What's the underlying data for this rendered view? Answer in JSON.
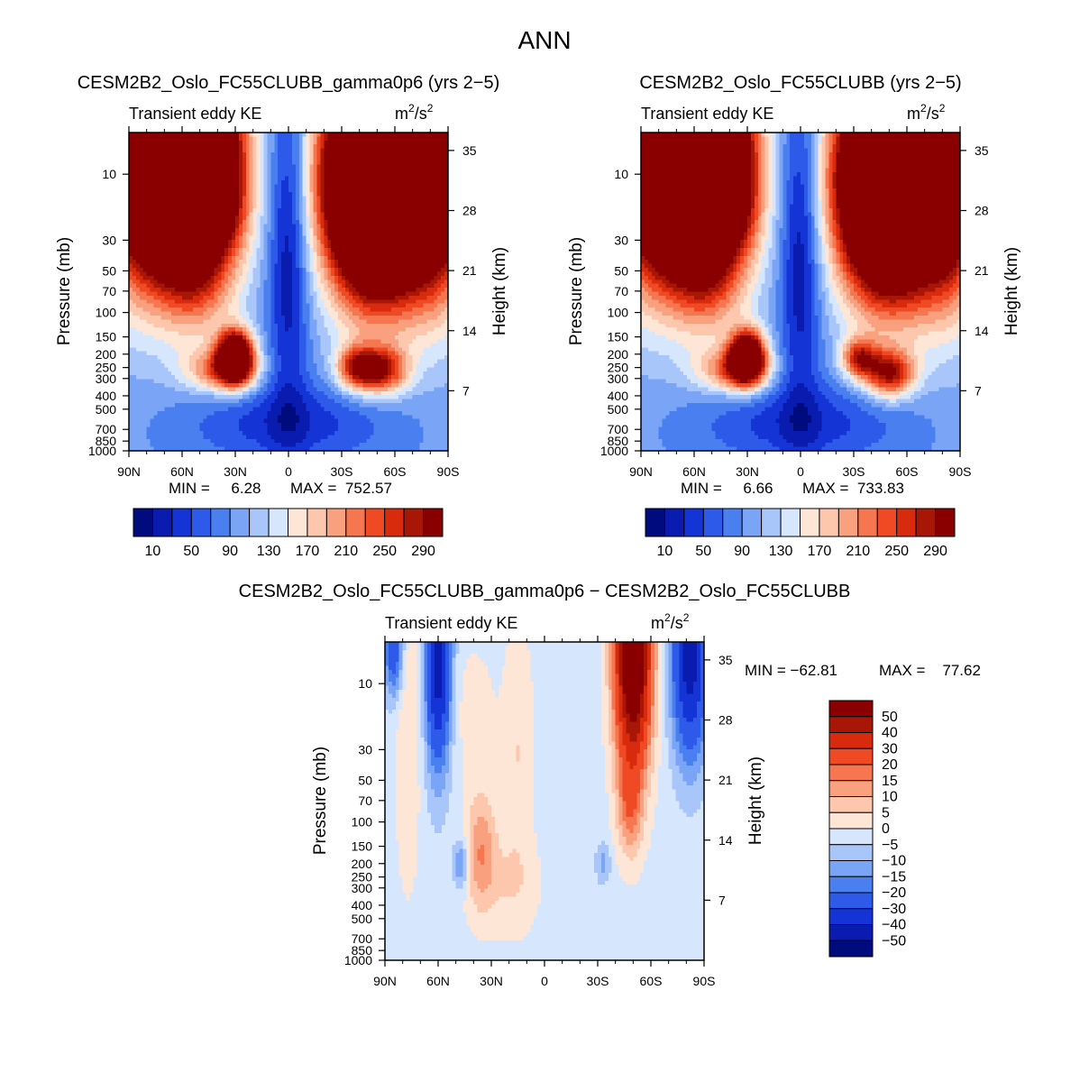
{
  "figure_title": "ANN",
  "colors": {
    "abs_palette": [
      "#000c7e",
      "#0a1cb0",
      "#1434d6",
      "#2d5ae8",
      "#4a7ff0",
      "#7aa4f6",
      "#a9c6fa",
      "#d6e6fd",
      "#fde6d6",
      "#fcc7ac",
      "#f9a07e",
      "#f6764f",
      "#ef4a23",
      "#d82b0e",
      "#a81706",
      "#8a0000"
    ],
    "diff_palette": [
      "#000c7e",
      "#0a1cb0",
      "#1434d6",
      "#2d5ae8",
      "#4a7ff0",
      "#7aa4f6",
      "#a9c6fa",
      "#d6e6fd",
      "#fde6d6",
      "#fcc7ac",
      "#f9a07e",
      "#f6764f",
      "#ef4a23",
      "#d82b0e",
      "#a81706",
      "#8a0000"
    ],
    "missing": "#ffffff"
  },
  "chart_data": [
    {
      "id": "panel1",
      "type": "heatmap",
      "title": "CESM2B2_Oslo_FC55CLUBB_gamma0p6 (yrs 2−5)",
      "subtitle": "Transient eddy KE",
      "units_left": "m",
      "units_right": "/s",
      "units_sup": "2",
      "ylabel": "Pressure (mb)",
      "ylabel2": "Height (km)",
      "x_ticks": [
        "90N",
        "60N",
        "30N",
        "0",
        "30S",
        "60S",
        "90S"
      ],
      "x_values": [
        90,
        60,
        30,
        0,
        -30,
        -60,
        -90
      ],
      "y_ticks": [
        "10",
        "30",
        "50",
        "70",
        "100",
        "150",
        "200",
        "250",
        "300",
        "400",
        "500",
        "700",
        "850",
        "1000"
      ],
      "y_values": [
        10,
        30,
        50,
        70,
        100,
        150,
        200,
        250,
        300,
        400,
        500,
        700,
        850,
        1000
      ],
      "height_ticks": [
        "35",
        "28",
        "21",
        "14",
        "7"
      ],
      "height_values": [
        35,
        28,
        21,
        14,
        7
      ],
      "ylim": [
        5,
        1000
      ],
      "min_text": "MIN =     6.28",
      "max_text": "MAX =  752.57",
      "levels": [
        10,
        30,
        50,
        70,
        90,
        110,
        130,
        150,
        170,
        190,
        210,
        230,
        250,
        270,
        290
      ],
      "colorbar_labels": [
        "10",
        "50",
        "90",
        "130",
        "170",
        "210",
        "250",
        "290"
      ],
      "fields": {
        "base": 95,
        "blobs": [
          {
            "lat": 55,
            "logp": 1.0,
            "slat": 18,
            "slogp": 0.55,
            "amp": 650
          },
          {
            "lat": -50,
            "logp": 1.05,
            "slat": 20,
            "slogp": 0.55,
            "amp": 650
          },
          {
            "lat": 88,
            "logp": 0.7,
            "slat": 14,
            "slogp": 0.7,
            "amp": 300
          },
          {
            "lat": -85,
            "logp": 0.8,
            "slat": 14,
            "slogp": 0.7,
            "amp": 300
          },
          {
            "lat": 30,
            "logp": 2.32,
            "slat": 7,
            "slogp": 0.13,
            "amp": 330
          },
          {
            "lat": 38,
            "logp": 2.42,
            "slat": 14,
            "slogp": 0.11,
            "amp": 120
          },
          {
            "lat": -38,
            "logp": 2.4,
            "slat": 8,
            "slogp": 0.11,
            "amp": 150
          },
          {
            "lat": -53,
            "logp": 2.42,
            "slat": 10,
            "slogp": 0.12,
            "amp": 170
          },
          {
            "lat": 0,
            "logp": 1.5,
            "slat": 8,
            "slogp": 0.9,
            "amp": -90
          },
          {
            "lat": 0,
            "logp": 2.8,
            "slat": 40,
            "slogp": 0.2,
            "amp": -60
          },
          {
            "lat": 45,
            "logp": 1.6,
            "slat": 12,
            "slogp": 0.15,
            "amp": -30
          }
        ]
      }
    },
    {
      "id": "panel2",
      "type": "heatmap",
      "title": "CESM2B2_Oslo_FC55CLUBB (yrs 2−5)",
      "subtitle": "Transient eddy KE",
      "units_left": "m",
      "units_right": "/s",
      "units_sup": "2",
      "ylabel": "Pressure (mb)",
      "ylabel2": "Height (km)",
      "x_ticks": [
        "90N",
        "60N",
        "30N",
        "0",
        "30S",
        "60S",
        "90S"
      ],
      "x_values": [
        90,
        60,
        30,
        0,
        -30,
        -60,
        -90
      ],
      "y_ticks": [
        "10",
        "30",
        "50",
        "70",
        "100",
        "150",
        "200",
        "250",
        "300",
        "400",
        "500",
        "700",
        "850",
        "1000"
      ],
      "y_values": [
        10,
        30,
        50,
        70,
        100,
        150,
        200,
        250,
        300,
        400,
        500,
        700,
        850,
        1000
      ],
      "height_ticks": [
        "35",
        "28",
        "21",
        "14",
        "7"
      ],
      "height_values": [
        35,
        28,
        21,
        14,
        7
      ],
      "ylim": [
        5,
        1000
      ],
      "min_text": "MIN =     6.66",
      "max_text": "MAX =  733.83",
      "levels": [
        10,
        30,
        50,
        70,
        90,
        110,
        130,
        150,
        170,
        190,
        210,
        230,
        250,
        270,
        290
      ],
      "colorbar_labels": [
        "10",
        "50",
        "90",
        "130",
        "170",
        "210",
        "250",
        "290"
      ],
      "fields": {
        "base": 95,
        "blobs": [
          {
            "lat": 55,
            "logp": 1.0,
            "slat": 18,
            "slogp": 0.55,
            "amp": 650
          },
          {
            "lat": -50,
            "logp": 1.05,
            "slat": 20,
            "slogp": 0.55,
            "amp": 600
          },
          {
            "lat": 88,
            "logp": 0.7,
            "slat": 14,
            "slogp": 0.7,
            "amp": 300
          },
          {
            "lat": -85,
            "logp": 0.8,
            "slat": 14,
            "slogp": 0.7,
            "amp": 300
          },
          {
            "lat": 30,
            "logp": 2.32,
            "slat": 7,
            "slogp": 0.13,
            "amp": 320
          },
          {
            "lat": 38,
            "logp": 2.42,
            "slat": 14,
            "slogp": 0.11,
            "amp": 120
          },
          {
            "lat": -33,
            "logp": 2.33,
            "slat": 7,
            "slogp": 0.1,
            "amp": 150
          },
          {
            "lat": -50,
            "logp": 2.44,
            "slat": 10,
            "slogp": 0.12,
            "amp": 185
          },
          {
            "lat": 0,
            "logp": 1.5,
            "slat": 8,
            "slogp": 0.9,
            "amp": -90
          },
          {
            "lat": 0,
            "logp": 2.8,
            "slat": 40,
            "slogp": 0.2,
            "amp": -60
          },
          {
            "lat": 45,
            "logp": 1.6,
            "slat": 12,
            "slogp": 0.15,
            "amp": -30
          }
        ]
      }
    },
    {
      "id": "panel3",
      "type": "heatmap",
      "title": "CESM2B2_Oslo_FC55CLUBB_gamma0p6 − CESM2B2_Oslo_FC55CLUBB",
      "subtitle": "Transient eddy KE",
      "units_left": "m",
      "units_right": "/s",
      "units_sup": "2",
      "ylabel": "Pressure (mb)",
      "ylabel2": "Height (km)",
      "x_ticks": [
        "90N",
        "60N",
        "30N",
        "0",
        "30S",
        "60S",
        "90S"
      ],
      "x_values": [
        90,
        60,
        30,
        0,
        -30,
        -60,
        -90
      ],
      "y_ticks": [
        "10",
        "30",
        "50",
        "70",
        "100",
        "150",
        "200",
        "250",
        "300",
        "400",
        "500",
        "700",
        "850",
        "1000"
      ],
      "y_values": [
        10,
        30,
        50,
        70,
        100,
        150,
        200,
        250,
        300,
        400,
        500,
        700,
        850,
        1000
      ],
      "height_ticks": [
        "35",
        "28",
        "21",
        "14",
        "7"
      ],
      "height_values": [
        35,
        28,
        21,
        14,
        7
      ],
      "ylim": [
        5,
        1000
      ],
      "min_text": "MIN = −62.81",
      "max_text": "MAX =    77.62",
      "levels": [
        -50,
        -40,
        -30,
        -20,
        -15,
        -10,
        -5,
        0,
        5,
        10,
        15,
        20,
        30,
        40,
        50
      ],
      "colorbar_labels": [
        "50",
        "40",
        "30",
        "20",
        "15",
        "10",
        "5",
        "0",
        "−5",
        "−10",
        "−15",
        "−20",
        "−30",
        "−40",
        "−50"
      ],
      "fields": {
        "base": -2,
        "blobs": [
          {
            "lat": -50,
            "logp": 0.8,
            "slat": 7,
            "slogp": 0.55,
            "amp": 75
          },
          {
            "lat": -48,
            "logp": 1.9,
            "slat": 5,
            "slogp": 0.25,
            "amp": 15
          },
          {
            "lat": 60,
            "logp": 0.8,
            "slat": 5,
            "slogp": 0.55,
            "amp": -45
          },
          {
            "lat": -82,
            "logp": 0.8,
            "slat": 7,
            "slogp": 0.5,
            "amp": -45
          },
          {
            "lat": 85,
            "logp": 0.75,
            "slat": 4,
            "slogp": 0.25,
            "amp": -25
          },
          {
            "lat": 36,
            "logp": 2.2,
            "slat": 6,
            "slogp": 0.3,
            "amp": 16
          },
          {
            "lat": 77,
            "logp": 1.3,
            "slat": 5,
            "slogp": 0.8,
            "amp": 7
          },
          {
            "lat": 15,
            "logp": 1.5,
            "slat": 6,
            "slogp": 0.6,
            "amp": 7
          },
          {
            "lat": 40,
            "logp": 1.2,
            "slat": 8,
            "slogp": 0.3,
            "amp": 5
          },
          {
            "lat": 47,
            "logp": 2.3,
            "slat": 3,
            "slogp": 0.12,
            "amp": -15
          },
          {
            "lat": -33,
            "logp": 2.3,
            "slat": 3,
            "slogp": 0.1,
            "amp": -10
          },
          {
            "lat": 20,
            "logp": 2.45,
            "slat": 12,
            "slogp": 0.25,
            "amp": 6
          }
        ]
      }
    }
  ]
}
